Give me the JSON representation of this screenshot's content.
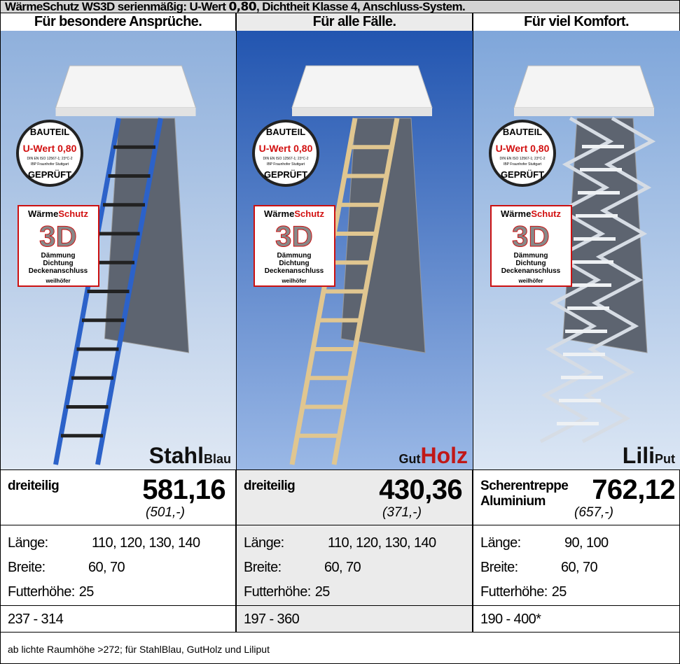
{
  "header": {
    "title_before": "WärmeSchutz WS3D serienmäßig: U-Wert ",
    "title_highlight": "0,80",
    "title_after": ", Dichtheit Klasse 4, Anschluss-System."
  },
  "badge": {
    "top": "BAUTEIL",
    "uwert": "U-Wert 0,80",
    "norm": "DIN EN ISO 12567-1; 23°C-2",
    "institute": "IBP Fraunhofer Stuttgart",
    "bottom": "GEPRÜFT",
    "brand_a": "Wärme",
    "brand_b": "Schutz",
    "logo": "3D",
    "lines": [
      "Dämmung",
      "Dichtung",
      "Deckenanschluss"
    ],
    "maker": "weilhöfer"
  },
  "columns": [
    {
      "heading": "Für besondere Ansprüche.",
      "brand_bold": "Stahl",
      "brand_small": "Blau",
      "desc": [
        "dreiteilig"
      ],
      "price": "581,16",
      "price_note": "(501,-)",
      "specs": [
        {
          "label": "Länge:",
          "value": "110, 120, 130, 140"
        },
        {
          "label": "Breite:",
          "value": "60, 70"
        },
        {
          "label": "Futterhöhe:",
          "value": "25"
        }
      ],
      "range": "237 - 314"
    },
    {
      "heading": "Für alle Fälle.",
      "brand_small": "Gut",
      "brand_bold": "Holz",
      "desc": [
        "dreiteilig"
      ],
      "price": "430,36",
      "price_note": "(371,-)",
      "specs": [
        {
          "label": "Länge:",
          "value": "110, 120, 130, 140"
        },
        {
          "label": "Breite:",
          "value": "60, 70"
        },
        {
          "label": "Futterhöhe:",
          "value": "25"
        }
      ],
      "range": "197 - 360"
    },
    {
      "heading": "Für viel Komfort.",
      "brand_bold": "Lili",
      "brand_small": "Put",
      "desc": [
        "Scherentreppe",
        "Aluminium"
      ],
      "price": "762,12",
      "price_note": "(657,-)",
      "specs": [
        {
          "label": "Länge:",
          "value": "90, 100"
        },
        {
          "label": "Breite:",
          "value": "60, 70"
        },
        {
          "label": "Futterhöhe:",
          "value": "25"
        }
      ],
      "range": "190 - 400*"
    }
  ],
  "footer": "ab lichte Raumhöhe >272; für StahlBlau, GutHolz und Liliput"
}
